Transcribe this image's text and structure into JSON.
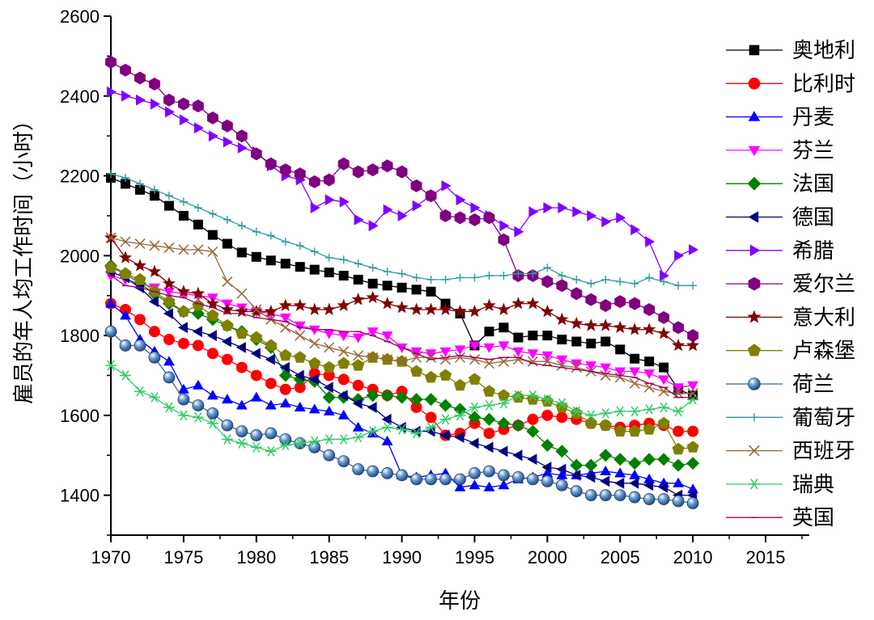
{
  "chart_data": {
    "type": "line",
    "xlabel": "年份",
    "ylabel": "雇员的年人均工作时间（小时）",
    "xlim": [
      1970,
      2018
    ],
    "ylim": [
      1300,
      2600
    ],
    "xticks": [
      "1970",
      "1975",
      "1980",
      "1985",
      "1990",
      "1995",
      "2000",
      "2005",
      "2010",
      "2015"
    ],
    "yticks": [
      "1400",
      "1600",
      "1800",
      "2000",
      "2200",
      "2400",
      "2600"
    ],
    "legend_position": "right",
    "x": [
      1970,
      1971,
      1972,
      1973,
      1974,
      1975,
      1976,
      1977,
      1978,
      1979,
      1980,
      1981,
      1982,
      1983,
      1984,
      1985,
      1986,
      1987,
      1988,
      1989,
      1990,
      1991,
      1992,
      1993,
      1994,
      1995,
      1996,
      1997,
      1998,
      1999,
      2000,
      2001,
      2002,
      2003,
      2004,
      2005,
      2006,
      2007,
      2008,
      2009,
      2010
    ],
    "series": [
      {
        "name": "奥地利",
        "color": "#000000",
        "marker": "square",
        "x0": 1970,
        "values": [
          2195,
          2180,
          2165,
          2150,
          2125,
          2100,
          2078,
          2052,
          2030,
          2008,
          1997,
          1988,
          1980,
          1972,
          1965,
          1958,
          1950,
          1940,
          1930,
          1925,
          1920,
          1915,
          1910,
          1880,
          1855,
          1775,
          1810,
          1820,
          1795,
          1800,
          1800,
          1790,
          1785,
          1780,
          1785,
          1765,
          1742,
          1735,
          1720,
          1665,
          1650
        ]
      },
      {
        "name": "比利时",
        "color": "#ff0000",
        "marker": "circle",
        "x0": 1970,
        "values": [
          1880,
          1865,
          1840,
          1810,
          1790,
          1780,
          1775,
          1755,
          1740,
          1720,
          1700,
          1680,
          1665,
          1670,
          1705,
          1700,
          1690,
          1675,
          1665,
          1650,
          1660,
          1620,
          1595,
          1550,
          1555,
          1580,
          1555,
          1565,
          1575,
          1590,
          1600,
          1595,
          1590,
          1580,
          1575,
          1570,
          1575,
          1580,
          1575,
          1560,
          1560
        ]
      },
      {
        "name": "丹麦",
        "color": "#0000ff",
        "marker": "triangle-up",
        "x0": 1970,
        "values": [
          1880,
          1850,
          1790,
          1760,
          1735,
          1665,
          1675,
          1650,
          1640,
          1625,
          1645,
          1625,
          1630,
          1620,
          1615,
          1610,
          1600,
          1570,
          1555,
          1535,
          1450,
          1445,
          1450,
          1455,
          1420,
          1425,
          1420,
          1425,
          1440,
          1445,
          1455,
          1450,
          1450,
          1455,
          1460,
          1455,
          1450,
          1440,
          1430,
          1430,
          1415
        ]
      },
      {
        "name": "芬兰",
        "color": "#ff00ff",
        "marker": "triangle-down",
        "x0": 1970,
        "values": [
          1950,
          1940,
          1930,
          1920,
          1910,
          1905,
          1900,
          1895,
          1880,
          1870,
          1860,
          1855,
          1845,
          1825,
          1815,
          1805,
          1800,
          1795,
          1810,
          1800,
          1770,
          1760,
          1755,
          1760,
          1765,
          1775,
          1770,
          1775,
          1760,
          1755,
          1750,
          1740,
          1730,
          1725,
          1720,
          1710,
          1710,
          1705,
          1690,
          1670,
          1675
        ]
      },
      {
        "name": "法国",
        "color": "#008000",
        "marker": "diamond",
        "x0": 1970,
        "values": [
          1975,
          1955,
          1930,
          1905,
          1880,
          1860,
          1855,
          1840,
          1825,
          1810,
          1790,
          1770,
          1700,
          1690,
          1685,
          1645,
          1645,
          1640,
          1650,
          1650,
          1645,
          1640,
          1640,
          1625,
          1615,
          1595,
          1590,
          1580,
          1575,
          1560,
          1525,
          1510,
          1475,
          1475,
          1500,
          1490,
          1480,
          1490,
          1490,
          1475,
          1480
        ]
      },
      {
        "name": "德国",
        "color": "#000080",
        "marker": "triangle-left",
        "x0": 1970,
        "values": [
          1960,
          1945,
          1920,
          1885,
          1855,
          1820,
          1810,
          1800,
          1785,
          1770,
          1755,
          1740,
          1720,
          1700,
          1690,
          1670,
          1650,
          1630,
          1620,
          1590,
          1570,
          1560,
          1560,
          1550,
          1545,
          1530,
          1520,
          1510,
          1500,
          1490,
          1470,
          1465,
          1450,
          1445,
          1435,
          1430,
          1430,
          1425,
          1420,
          1400,
          1400
        ]
      },
      {
        "name": "希腊",
        "color": "#8000ff",
        "marker": "triangle-right",
        "x0": 1970,
        "values": [
          2410,
          2400,
          2390,
          2380,
          2360,
          2340,
          2320,
          2300,
          2285,
          2270,
          2260,
          2225,
          2200,
          2190,
          2120,
          2140,
          2135,
          2090,
          2075,
          2115,
          2100,
          2125,
          2150,
          2175,
          2140,
          2120,
          2100,
          2075,
          2060,
          2110,
          2120,
          2120,
          2110,
          2100,
          2085,
          2095,
          2065,
          2035,
          1950,
          2000,
          2015
        ]
      },
      {
        "name": "爱尔兰",
        "color": "#800080",
        "marker": "hexagon",
        "x0": 1970,
        "values": [
          2485,
          2465,
          2445,
          2430,
          2390,
          2380,
          2375,
          2345,
          2325,
          2300,
          2255,
          2230,
          2215,
          2205,
          2185,
          2190,
          2230,
          2210,
          2215,
          2225,
          2210,
          2175,
          2150,
          2100,
          2095,
          2090,
          2095,
          2040,
          1950,
          1950,
          1935,
          1925,
          1905,
          1890,
          1875,
          1885,
          1880,
          1865,
          1845,
          1820,
          1800
        ]
      },
      {
        "name": "意大利",
        "color": "#800000",
        "marker": "star",
        "x0": 1970,
        "values": [
          2045,
          1995,
          1975,
          1960,
          1930,
          1910,
          1905,
          1880,
          1865,
          1860,
          1860,
          1860,
          1875,
          1875,
          1865,
          1865,
          1875,
          1890,
          1895,
          1880,
          1870,
          1865,
          1865,
          1865,
          1860,
          1860,
          1875,
          1865,
          1880,
          1880,
          1860,
          1840,
          1830,
          1825,
          1825,
          1820,
          1815,
          1815,
          1805,
          1775,
          1775
        ]
      },
      {
        "name": "卢森堡",
        "color": "#808000",
        "marker": "pentagon",
        "x0": 1970,
        "values": [
          1970,
          1955,
          1940,
          1910,
          1885,
          1860,
          1875,
          1850,
          1825,
          1805,
          1795,
          1775,
          1750,
          1745,
          1730,
          1720,
          1730,
          1725,
          1745,
          1740,
          1735,
          1710,
          1695,
          1700,
          1675,
          1690,
          1660,
          1650,
          1645,
          1640,
          1635,
          1620,
          1605,
          1580,
          1575,
          1560,
          1560,
          1565,
          1580,
          1515,
          1520
        ]
      },
      {
        "name": "荷兰",
        "color": "#336699",
        "marker": "sphere",
        "x0": 1970,
        "values": [
          1810,
          1775,
          1775,
          1745,
          1695,
          1640,
          1625,
          1605,
          1575,
          1560,
          1550,
          1555,
          1540,
          1530,
          1520,
          1500,
          1485,
          1465,
          1460,
          1455,
          1450,
          1440,
          1440,
          1440,
          1440,
          1455,
          1460,
          1450,
          1445,
          1440,
          1435,
          1425,
          1410,
          1400,
          1400,
          1400,
          1395,
          1390,
          1390,
          1385,
          1380
        ]
      },
      {
        "name": "葡萄牙",
        "color": "#339999",
        "marker": "plus",
        "x0": 1970,
        "values": [
          2205,
          2195,
          2180,
          2165,
          2150,
          2135,
          2120,
          2105,
          2090,
          2075,
          2060,
          2050,
          2035,
          2025,
          2010,
          1995,
          1990,
          1980,
          1970,
          1960,
          1955,
          1945,
          1940,
          1940,
          1945,
          1945,
          1950,
          1950,
          1955,
          1955,
          1970,
          1950,
          1940,
          1930,
          1940,
          1935,
          1930,
          1945,
          1935,
          1925,
          1925
        ]
      },
      {
        "name": "西班牙",
        "color": "#996633",
        "marker": "x",
        "x0": 1970,
        "values": [
          2045,
          2035,
          2030,
          2025,
          2020,
          2015,
          2015,
          2010,
          1935,
          1905,
          1865,
          1840,
          1820,
          1800,
          1780,
          1770,
          1760,
          1750,
          1745,
          1740,
          1735,
          1745,
          1745,
          1740,
          1745,
          1740,
          1730,
          1735,
          1740,
          1735,
          1735,
          1725,
          1720,
          1710,
          1700,
          1695,
          1680,
          1670,
          1660,
          1655,
          1655
        ]
      },
      {
        "name": "瑞典",
        "color": "#33cc66",
        "marker": "asterisk",
        "x0": 1970,
        "values": [
          1725,
          1700,
          1660,
          1645,
          1620,
          1600,
          1595,
          1580,
          1540,
          1530,
          1520,
          1510,
          1525,
          1530,
          1535,
          1540,
          1540,
          1545,
          1560,
          1570,
          1565,
          1555,
          1570,
          1590,
          1600,
          1620,
          1625,
          1630,
          1650,
          1650,
          1640,
          1630,
          1610,
          1600,
          1605,
          1610,
          1610,
          1615,
          1620,
          1610,
          1640
        ]
      },
      {
        "name": "英国",
        "color": "#990066",
        "marker": "dash",
        "x0": 1970,
        "values": [
          1950,
          1925,
          1920,
          1910,
          1900,
          1895,
          1880,
          1870,
          1855,
          1855,
          1845,
          1840,
          1835,
          1820,
          1815,
          1815,
          1810,
          1810,
          1800,
          1785,
          1770,
          1755,
          1740,
          1745,
          1750,
          1745,
          1740,
          1745,
          1745,
          1730,
          1725,
          1720,
          1715,
          1710,
          1705,
          1700,
          1695,
          1680,
          1670,
          1645,
          1645
        ]
      }
    ]
  }
}
